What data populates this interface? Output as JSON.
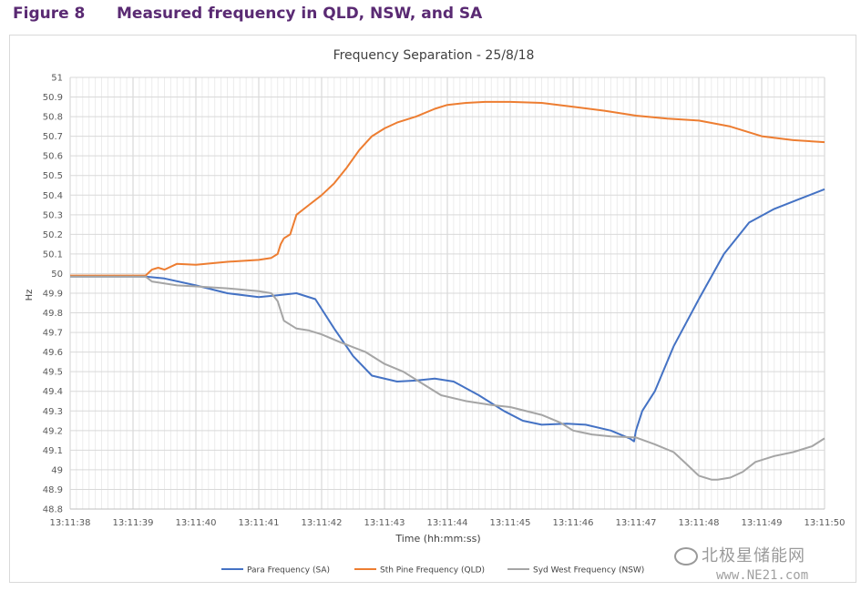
{
  "figure": {
    "number": "Figure 8",
    "caption": "Measured frequency in QLD, NSW, and SA"
  },
  "chart_data": {
    "type": "line",
    "title": "Frequency Separation - 25/8/18",
    "xlabel": "Time (hh:mm:ss)",
    "ylabel": "Hz",
    "ylim": [
      48.8,
      51
    ],
    "yticks": [
      "48.8",
      "48.9",
      "49",
      "49.1",
      "49.2",
      "49.3",
      "49.4",
      "49.5",
      "49.6",
      "49.7",
      "49.8",
      "49.9",
      "50",
      "50.1",
      "50.2",
      "50.3",
      "50.4",
      "50.5",
      "50.6",
      "50.7",
      "50.8",
      "50.9",
      "51"
    ],
    "xlim": [
      0,
      12
    ],
    "xticks": [
      "13:11:38",
      "13:11:39",
      "13:11:40",
      "13:11:41",
      "13:11:42",
      "13:11:43",
      "13:11:44",
      "13:11:45",
      "13:11:46",
      "13:11:47",
      "13:11:48",
      "13:11:49",
      "13:11:50"
    ],
    "grid": true,
    "legend_position": "bottom",
    "series": [
      {
        "name": "Para Frequency (SA)",
        "color": "#4472c4",
        "x": [
          0,
          1.2,
          1.5,
          2.0,
          2.5,
          3.0,
          3.3,
          3.6,
          3.9,
          4.2,
          4.5,
          4.8,
          5.2,
          5.5,
          5.8,
          6.1,
          6.5,
          6.9,
          7.2,
          7.5,
          7.9,
          8.2,
          8.6,
          8.9,
          8.97,
          9.0,
          9.1,
          9.3,
          9.6,
          10.0,
          10.4,
          10.8,
          11.2,
          11.6,
          12.0
        ],
        "values": [
          49.985,
          49.985,
          49.975,
          49.94,
          49.9,
          49.88,
          49.89,
          49.9,
          49.87,
          49.72,
          49.58,
          49.48,
          49.45,
          49.455,
          49.465,
          49.45,
          49.38,
          49.3,
          49.25,
          49.23,
          49.235,
          49.23,
          49.2,
          49.16,
          49.145,
          49.2,
          49.3,
          49.4,
          49.63,
          49.87,
          50.1,
          50.26,
          50.33,
          50.38,
          50.43
        ]
      },
      {
        "name": "Sth Pine Frequency (QLD)",
        "color": "#ed7d31",
        "x": [
          0,
          1.2,
          1.3,
          1.4,
          1.5,
          1.7,
          2.0,
          2.5,
          3.0,
          3.2,
          3.3,
          3.35,
          3.4,
          3.5,
          3.6,
          3.8,
          4.0,
          4.2,
          4.4,
          4.6,
          4.8,
          5.0,
          5.2,
          5.5,
          5.8,
          6.0,
          6.3,
          6.6,
          7.0,
          7.5,
          8.0,
          8.5,
          9.0,
          9.5,
          10.0,
          10.5,
          11.0,
          11.5,
          12.0
        ],
        "values": [
          49.99,
          49.99,
          50.02,
          50.03,
          50.02,
          50.05,
          50.045,
          50.06,
          50.07,
          50.08,
          50.1,
          50.15,
          50.18,
          50.2,
          50.3,
          50.35,
          50.4,
          50.46,
          50.54,
          50.63,
          50.7,
          50.74,
          50.77,
          50.8,
          50.84,
          50.86,
          50.87,
          50.875,
          50.875,
          50.87,
          50.85,
          50.83,
          50.805,
          50.79,
          50.78,
          50.75,
          50.7,
          50.68,
          50.67
        ]
      },
      {
        "name": "Syd West Frequency (NSW)",
        "color": "#a5a5a5",
        "x": [
          0,
          1.2,
          1.3,
          1.5,
          1.7,
          2.0,
          2.5,
          3.0,
          3.2,
          3.3,
          3.4,
          3.6,
          3.8,
          4.0,
          4.3,
          4.7,
          5.0,
          5.3,
          5.6,
          5.9,
          6.3,
          6.7,
          7.0,
          7.5,
          7.8,
          8.0,
          8.3,
          8.6,
          9.0,
          9.3,
          9.6,
          9.8,
          10.0,
          10.2,
          10.3,
          10.5,
          10.7,
          10.9,
          11.2,
          11.5,
          11.8,
          12.0
        ],
        "values": [
          49.985,
          49.985,
          49.96,
          49.95,
          49.94,
          49.935,
          49.925,
          49.91,
          49.9,
          49.86,
          49.76,
          49.72,
          49.71,
          49.69,
          49.65,
          49.6,
          49.54,
          49.5,
          49.44,
          49.38,
          49.35,
          49.33,
          49.32,
          49.28,
          49.24,
          49.2,
          49.18,
          49.17,
          49.165,
          49.13,
          49.09,
          49.03,
          48.97,
          48.95,
          48.95,
          48.96,
          48.99,
          49.04,
          49.07,
          49.09,
          49.12,
          49.16
        ]
      }
    ]
  },
  "watermark": {
    "text": "北极星储能网",
    "sub": "www.NE21.com"
  }
}
